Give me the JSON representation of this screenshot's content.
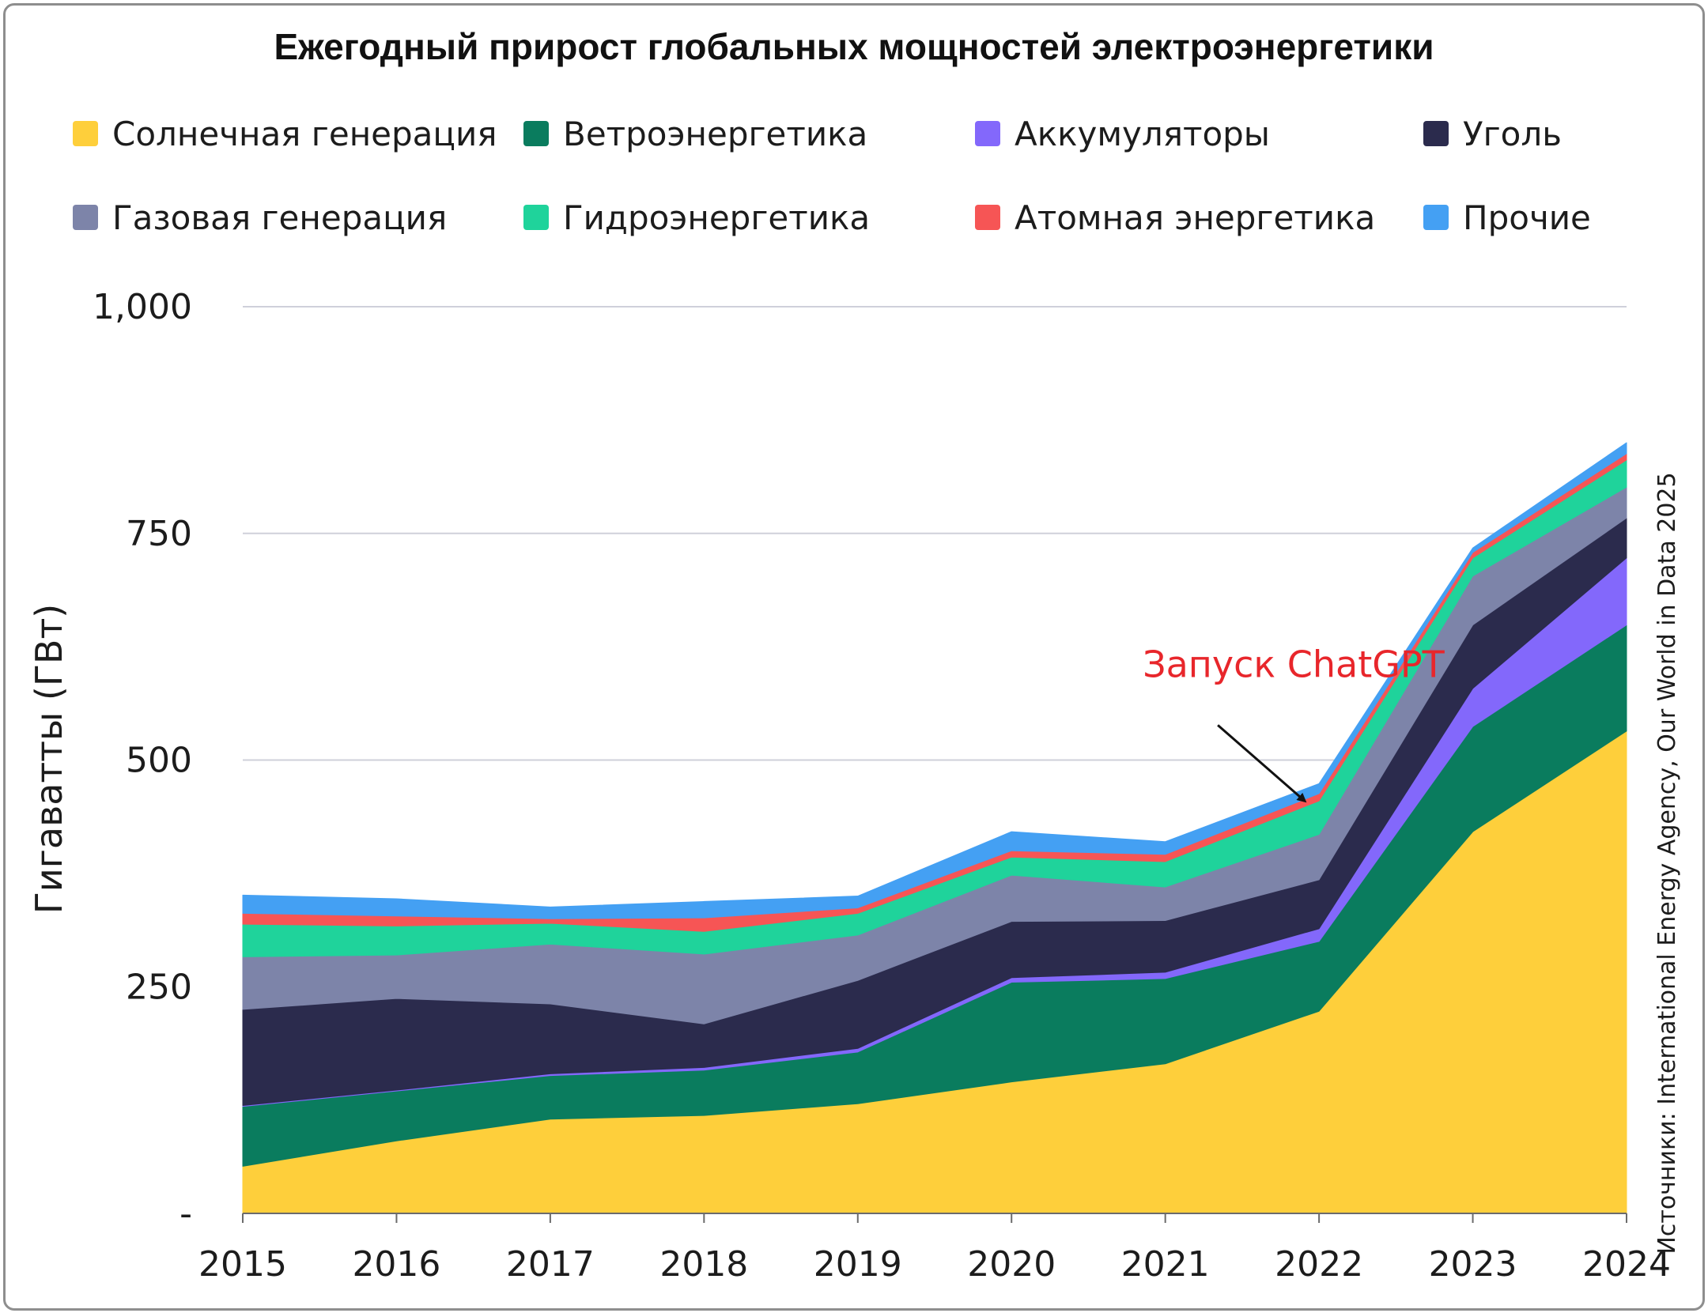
{
  "chart_data": {
    "type": "area",
    "stacked": true,
    "title": "Ежегодный прирост глобальных мощностей электроэнергетики",
    "ylabel": "Гигаватты (ГВт)",
    "xlabel": "",
    "x": [
      "2015",
      "2016",
      "2017",
      "2018",
      "2019",
      "2020",
      "2021",
      "2022",
      "2023",
      "2024"
    ],
    "ylim": [
      0,
      1000
    ],
    "yticks": [
      {
        "value": 0,
        "label": "-"
      },
      {
        "value": 250,
        "label": "250"
      },
      {
        "value": 500,
        "label": "500"
      },
      {
        "value": 750,
        "label": "750"
      },
      {
        "value": 1000,
        "label": "1,000"
      }
    ],
    "grid": true,
    "legend_position": "top",
    "series": [
      {
        "name": "Солнечная генерация",
        "color": "#fecf3b",
        "values": [
          52,
          80,
          104,
          108,
          121,
          145,
          165,
          223,
          421,
          532
        ]
      },
      {
        "name": "Ветроэнергетика",
        "color": "#0a7c5e",
        "values": [
          66,
          55,
          48,
          50,
          57,
          110,
          94,
          77,
          116,
          117
        ]
      },
      {
        "name": "Аккумуляторы",
        "color": "#8368fb",
        "values": [
          1,
          1,
          2,
          3,
          4,
          5,
          7,
          14,
          42,
          74
        ]
      },
      {
        "name": "Уголь",
        "color": "#2b2b4d",
        "values": [
          106,
          101,
          77,
          48,
          75,
          62,
          57,
          54,
          70,
          44
        ]
      },
      {
        "name": "Газовая генерация",
        "color": "#7d84a9",
        "values": [
          58,
          48,
          66,
          77,
          50,
          51,
          37,
          50,
          54,
          34
        ]
      },
      {
        "name": "Гидроэнергетика",
        "color": "#1fd39b",
        "values": [
          36,
          32,
          23,
          25,
          24,
          20,
          28,
          37,
          20,
          30
        ]
      },
      {
        "name": "Атомная энергетика",
        "color": "#f65555",
        "values": [
          12,
          11,
          5,
          15,
          6,
          7,
          8,
          8,
          6,
          7
        ]
      },
      {
        "name": "Прочие",
        "color": "#44a0f3",
        "values": [
          20,
          19,
          13,
          18,
          13,
          21,
          14,
          11,
          5,
          12
        ]
      }
    ],
    "annotations": [
      {
        "text": "Запуск ChatGPT",
        "x": "2022",
        "color": "#e8262b",
        "arrow": true
      }
    ],
    "source": "Источники: International Energy Agency, Our World in Data 2025"
  }
}
